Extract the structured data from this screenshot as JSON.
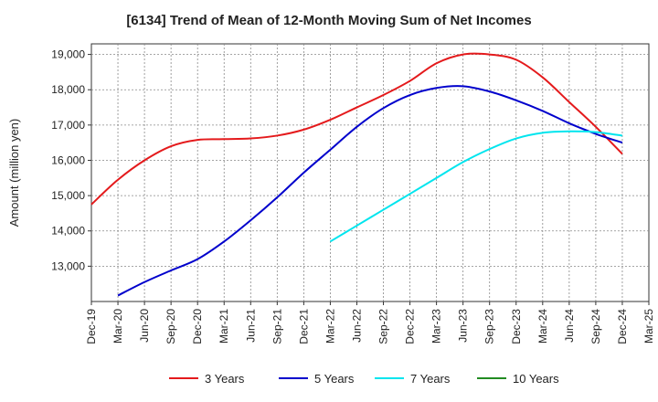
{
  "chart_data": {
    "type": "line",
    "title": "[6134]  Trend of Mean of 12-Month Moving Sum of Net Incomes",
    "xlabel": "",
    "ylabel": "Amount (million yen)",
    "x_tick_labels": [
      "Dec-19",
      "Mar-20",
      "Jun-20",
      "Sep-20",
      "Dec-20",
      "Mar-21",
      "Jun-21",
      "Sep-21",
      "Dec-21",
      "Mar-22",
      "Jun-22",
      "Sep-22",
      "Dec-22",
      "Mar-23",
      "Jun-23",
      "Sep-23",
      "Dec-23",
      "Mar-24",
      "Jun-24",
      "Sep-24",
      "Dec-24",
      "Mar-25"
    ],
    "y_tick_labels": [
      "13,000",
      "14,000",
      "15,000",
      "16,000",
      "17,000",
      "18,000",
      "19,000"
    ],
    "y_ticks": [
      13000,
      14000,
      15000,
      16000,
      17000,
      18000,
      19000
    ],
    "ylim": [
      12000,
      19300
    ],
    "grid": true,
    "legend_position": "bottom",
    "series": [
      {
        "name": "3 Years",
        "color": "#e41a1c",
        "x": [
          "Dec-19",
          "Mar-20",
          "Jun-20",
          "Sep-20",
          "Dec-20",
          "Mar-21",
          "Jun-21",
          "Sep-21",
          "Dec-21",
          "Mar-22",
          "Jun-22",
          "Sep-22",
          "Dec-22",
          "Mar-23",
          "Jun-23",
          "Sep-23",
          "Dec-23",
          "Mar-24",
          "Jun-24",
          "Sep-24",
          "Dec-24"
        ],
        "values": [
          14750,
          15450,
          16000,
          16400,
          16580,
          16600,
          16620,
          16700,
          16870,
          17150,
          17500,
          17850,
          18250,
          18750,
          19000,
          19000,
          18850,
          18350,
          17650,
          16950,
          16180
        ]
      },
      {
        "name": "5 Years",
        "color": "#0000cc",
        "x": [
          "Mar-20",
          "Jun-20",
          "Sep-20",
          "Dec-20",
          "Mar-21",
          "Jun-21",
          "Sep-21",
          "Dec-21",
          "Mar-22",
          "Jun-22",
          "Sep-22",
          "Dec-22",
          "Mar-23",
          "Jun-23",
          "Sep-23",
          "Dec-23",
          "Mar-24",
          "Jun-24",
          "Sep-24",
          "Dec-24"
        ],
        "values": [
          12170,
          12550,
          12880,
          13200,
          13700,
          14300,
          14950,
          15650,
          16300,
          16950,
          17480,
          17850,
          18050,
          18100,
          17950,
          17700,
          17400,
          17050,
          16750,
          16500
        ]
      },
      {
        "name": "7 Years",
        "color": "#00e5ee",
        "x": [
          "Mar-22",
          "Jun-22",
          "Sep-22",
          "Dec-22",
          "Mar-23",
          "Jun-23",
          "Sep-23",
          "Dec-23",
          "Mar-24",
          "Jun-24",
          "Sep-24",
          "Dec-24"
        ],
        "values": [
          13700,
          14150,
          14600,
          15050,
          15500,
          15950,
          16320,
          16620,
          16780,
          16820,
          16800,
          16700
        ]
      },
      {
        "name": "10 Years",
        "color": "#228b22",
        "x": [],
        "values": []
      }
    ]
  }
}
